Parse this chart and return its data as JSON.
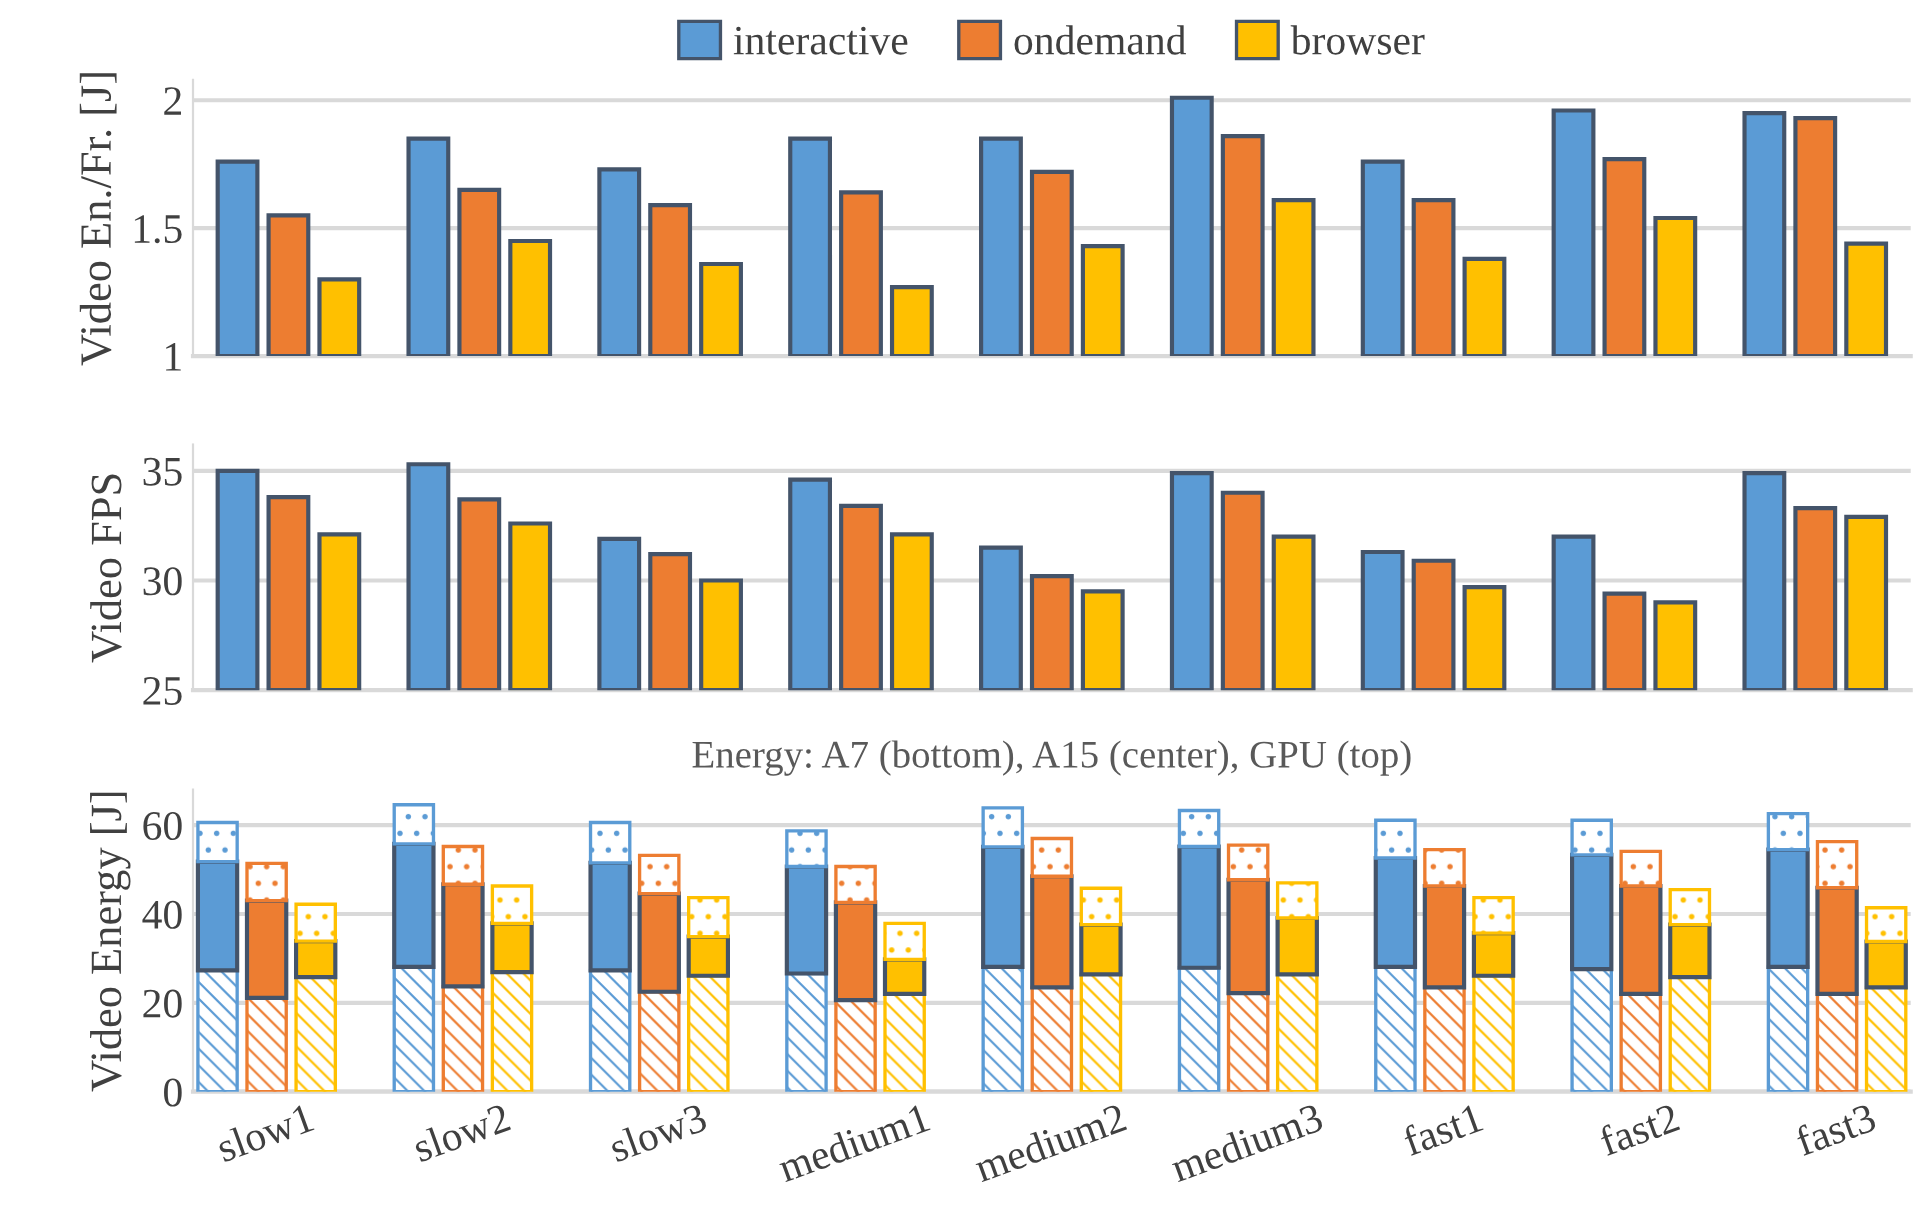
{
  "chart_data": [
    {
      "type": "bar",
      "categories": [
        null,
        null,
        null,
        null,
        null,
        null,
        null,
        null,
        null
      ],
      "ylabel": "Video En./Fr. [J]",
      "ylim": [
        1,
        2.08
      ],
      "yticks": [
        1,
        1.5,
        2
      ],
      "grid": "y",
      "legend": "top",
      "tick_labels": "y",
      "series": [
        {
          "name": "interactive",
          "color": "#5b9bd5",
          "values": [
            1.76,
            1.85,
            1.73,
            1.85,
            1.85,
            2.01,
            1.76,
            1.96,
            1.95
          ]
        },
        {
          "name": "ondemand",
          "color": "#ed7d31",
          "values": [
            1.55,
            1.65,
            1.59,
            1.64,
            1.72,
            1.86,
            1.61,
            1.77,
            1.93
          ]
        },
        {
          "name": "browser",
          "color": "#ffc000",
          "values": [
            1.3,
            1.45,
            1.36,
            1.27,
            1.43,
            1.61,
            1.38,
            1.54,
            1.44
          ]
        }
      ]
    },
    {
      "type": "bar",
      "categories": [
        null,
        null,
        null,
        null,
        null,
        null,
        null,
        null,
        null
      ],
      "ylabel": "Video FPS",
      "ylim": [
        25,
        36.2
      ],
      "yticks": [
        25,
        30,
        35
      ],
      "grid": "y",
      "tick_labels": "y",
      "series": [
        {
          "color": "#5b9bd5",
          "values": [
            35.0,
            35.3,
            31.9,
            34.6,
            31.5,
            34.9,
            31.3,
            32.0,
            34.9
          ]
        },
        {
          "color": "#ed7d31",
          "values": [
            33.8,
            33.7,
            31.2,
            33.4,
            30.2,
            34.0,
            30.9,
            29.4,
            33.3
          ]
        },
        {
          "color": "#ffc000",
          "values": [
            32.1,
            32.6,
            30.0,
            32.1,
            29.5,
            32.0,
            29.7,
            29.0,
            32.9
          ]
        }
      ]
    },
    {
      "type": "bar",
      "stacked": true,
      "title": "Energy: A7 (bottom), A15 (center), GPU (top)",
      "categories": [
        null,
        "slow1",
        null,
        null,
        null,
        "slow2",
        null,
        null,
        null,
        "slow3",
        null,
        null,
        null,
        "medium1",
        null,
        null,
        null,
        "medium2",
        null,
        null,
        null,
        "medium3",
        null,
        null,
        null,
        "fast1",
        null,
        null,
        null,
        "fast2",
        null,
        null,
        null,
        "fast3",
        null
      ],
      "ylabel": "Video Energy [J]",
      "ylim": [
        0,
        68
      ],
      "yticks": [
        0,
        20,
        40,
        60
      ],
      "grid": "y",
      "series": [
        {
          "colors": [
            "#5b9bd5",
            "#ed7d31",
            "#ffc000",
            null,
            "#5b9bd5",
            "#ed7d31",
            "#ffc000",
            null,
            "#5b9bd5",
            "#ed7d31",
            "#ffc000",
            null,
            "#5b9bd5",
            "#ed7d31",
            "#ffc000",
            null,
            "#5b9bd5",
            "#ed7d31",
            "#ffc000",
            null,
            "#5b9bd5",
            "#ed7d31",
            "#ffc000",
            null,
            "#5b9bd5",
            "#ed7d31",
            "#ffc000",
            null,
            "#5b9bd5",
            "#ed7d31",
            "#ffc000",
            null,
            "#5b9bd5",
            "#ed7d31",
            "#ffc000"
          ],
          "values": [
            27.3,
            21.1,
            25.8,
            null,
            28.1,
            23.7,
            26.9,
            null,
            27.3,
            22.5,
            26.1,
            null,
            26.6,
            20.6,
            22.0,
            null,
            28.1,
            23.5,
            26.4,
            null,
            27.9,
            22.2,
            26.4,
            null,
            28.1,
            23.5,
            26.1,
            null,
            27.6,
            22.0,
            25.8,
            null,
            28.1,
            22.0,
            23.5
          ]
        },
        {
          "colors": [
            "#5b9bd5",
            "#ed7d31",
            "#ffc000",
            null,
            "#5b9bd5",
            "#ed7d31",
            "#ffc000",
            null,
            "#5b9bd5",
            "#ed7d31",
            "#ffc000",
            null,
            "#5b9bd5",
            "#ed7d31",
            "#ffc000",
            null,
            "#5b9bd5",
            "#ed7d31",
            "#ffc000",
            null,
            "#5b9bd5",
            "#ed7d31",
            "#ffc000",
            null,
            "#5b9bd5",
            "#ed7d31",
            "#ffc000",
            null,
            "#5b9bd5",
            "#ed7d31",
            "#ffc000",
            null,
            "#5b9bd5",
            "#ed7d31",
            "#ffc000"
          ],
          "values": [
            24.5,
            21.9,
            8.1,
            null,
            27.7,
            23.0,
            11.0,
            null,
            24.2,
            22.1,
            8.8,
            null,
            24.1,
            22.0,
            7.8,
            null,
            27.0,
            25.0,
            11.2,
            null,
            27.3,
            25.5,
            12.7,
            null,
            24.5,
            22.8,
            9.6,
            null,
            25.7,
            24.3,
            11.8,
            null,
            26.4,
            23.9,
            10.3
          ]
        },
        {
          "colors": [
            "#5b9bd5",
            "#ed7d31",
            "#ffc000",
            null,
            "#5b9bd5",
            "#ed7d31",
            "#ffc000",
            null,
            "#5b9bd5",
            "#ed7d31",
            "#ffc000",
            null,
            "#5b9bd5",
            "#ed7d31",
            "#ffc000",
            null,
            "#5b9bd5",
            "#ed7d31",
            "#ffc000",
            null,
            "#5b9bd5",
            "#ed7d31",
            "#ffc000",
            null,
            "#5b9bd5",
            "#ed7d31",
            "#ffc000",
            null,
            "#5b9bd5",
            "#ed7d31",
            "#ffc000",
            null,
            "#5b9bd5",
            "#ed7d31",
            "#ffc000"
          ],
          "values": [
            8.8,
            8.4,
            8.3,
            null,
            8.8,
            8.5,
            8.4,
            null,
            9.1,
            8.6,
            8.8,
            null,
            8.0,
            8.1,
            8.1,
            null,
            8.8,
            8.5,
            8.2,
            null,
            8.1,
            7.8,
            7.9,
            null,
            8.5,
            8.2,
            8.0,
            null,
            7.8,
            7.8,
            7.9,
            null,
            8.1,
            10.4,
            7.6
          ]
        }
      ]
    }
  ]
}
